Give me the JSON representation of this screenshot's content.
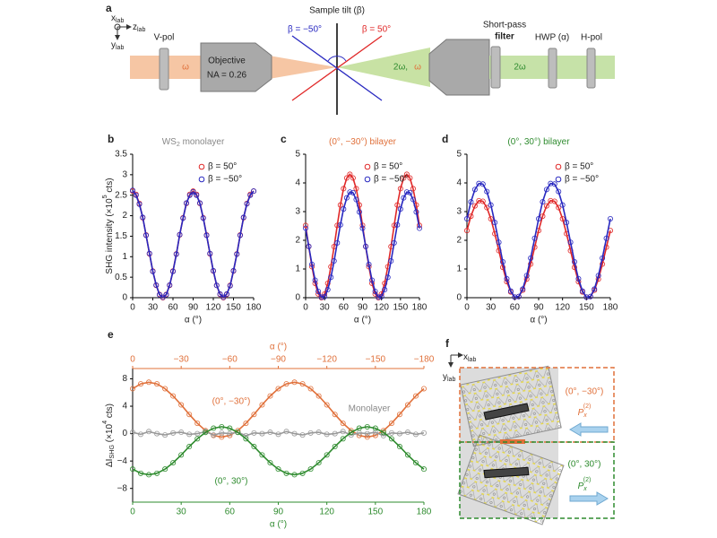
{
  "diagram_a": {
    "label": "a",
    "x_axis": {
      "text": "x",
      "sub": "lab"
    },
    "z_axis": {
      "text": "z",
      "sub": "lab"
    },
    "y_axis": {
      "text": "y",
      "sub": "lab"
    },
    "v_pol": "V-pol",
    "omega_in": "ω",
    "objective": "Objective",
    "na": "NA = 0.26",
    "sample_tilt": "Sample tilt (β)",
    "beta_neg": "β = −50°",
    "beta_pos": "β = 50°",
    "two_omega_mix": "2ω,",
    "omega_mix": "ω",
    "short_pass": "Short-pass",
    "filter": "filter",
    "hwp": "HWP (α)",
    "h_pol": "H-pol",
    "two_omega_out": "2ω"
  },
  "diagram_f": {
    "label": "f",
    "x_axis": {
      "text": "x",
      "sub": "lab"
    },
    "y_axis": {
      "text": "y",
      "sub": "lab"
    },
    "top_stack": "(0°, −30°)",
    "top_pol": {
      "text": "P",
      "sub": "x",
      "sup": "(2)"
    },
    "bottom_stack": "(0°, 30°)",
    "bottom_pol": {
      "text": "P",
      "sub": "x",
      "sup": "(2)"
    }
  },
  "chart_data": [
    {
      "type": "line",
      "panel": "b",
      "title": [
        {
          "text": "WS"
        },
        {
          "text": "2",
          "shift": "sub"
        },
        {
          "text": " monolayer"
        }
      ],
      "title_color": "#888888",
      "xlabel": "α (°)",
      "ylabel": [
        {
          "text": "SHG intensity (×10"
        },
        {
          "text": "5",
          "shift": "super"
        },
        {
          "text": " cts)"
        }
      ],
      "xlim": [
        0,
        180
      ],
      "xticks": [
        0,
        30,
        60,
        90,
        120,
        150,
        180
      ],
      "ylim": [
        0,
        3.5
      ],
      "yticks": [
        0,
        0.5,
        1,
        1.5,
        2,
        2.5,
        3,
        3.5
      ],
      "legend": "upper right",
      "x": [
        0,
        5,
        10,
        15,
        20,
        25,
        30,
        35,
        40,
        45,
        50,
        55,
        60,
        65,
        70,
        75,
        80,
        85,
        90,
        95,
        100,
        105,
        110,
        115,
        120,
        125,
        130,
        135,
        140,
        145,
        150,
        155,
        160,
        165,
        170,
        175,
        180
      ],
      "series": [
        {
          "name": "β = 50°",
          "color": "#e02828",
          "values": [
            2.6,
            2.52,
            2.3,
            1.95,
            1.53,
            1.07,
            0.65,
            0.3,
            0.08,
            0,
            0.08,
            0.3,
            0.65,
            1.07,
            1.53,
            1.95,
            2.3,
            2.52,
            2.6,
            2.52,
            2.3,
            1.95,
            1.53,
            1.07,
            0.65,
            0.3,
            0.08,
            0,
            0.08,
            0.3,
            0.65,
            1.07,
            1.53,
            1.95,
            2.3,
            2.52,
            2.6
          ]
        },
        {
          "name": "β = −50°",
          "color": "#2828c0",
          "values": [
            2.62,
            2.5,
            2.28,
            1.96,
            1.52,
            1.08,
            0.64,
            0.31,
            0.07,
            0.01,
            0.07,
            0.31,
            0.64,
            1.06,
            1.54,
            1.94,
            2.31,
            2.5,
            2.58,
            2.5,
            2.31,
            1.94,
            1.52,
            1.08,
            0.66,
            0.3,
            0.09,
            0.01,
            0.09,
            0.29,
            0.66,
            1.06,
            1.52,
            1.96,
            2.29,
            2.5,
            2.6
          ]
        }
      ]
    },
    {
      "type": "line",
      "panel": "c",
      "title": [
        {
          "text": "(0°, −30°) bilayer"
        }
      ],
      "title_color": "#e0703a",
      "xlabel": "α (°)",
      "xlim": [
        0,
        180
      ],
      "xticks": [
        0,
        30,
        60,
        90,
        120,
        150,
        180
      ],
      "ylim": [
        0,
        5
      ],
      "yticks": [
        0,
        1,
        2,
        3,
        4,
        5
      ],
      "legend": "upper right",
      "x": [
        0,
        5,
        10,
        15,
        20,
        25,
        30,
        35,
        40,
        45,
        50,
        55,
        60,
        65,
        70,
        75,
        80,
        85,
        90,
        95,
        100,
        105,
        110,
        115,
        120,
        125,
        130,
        135,
        140,
        145,
        150,
        155,
        160,
        165,
        170,
        175,
        180
      ],
      "series": [
        {
          "name": "β = 50°",
          "color": "#e02828",
          "values": [
            2.52,
            1.78,
            1.08,
            0.5,
            0.13,
            0,
            0.13,
            0.5,
            1.08,
            1.78,
            2.52,
            3.23,
            3.8,
            4.17,
            4.3,
            4.17,
            3.8,
            3.23,
            2.52,
            1.78,
            1.08,
            0.5,
            0.13,
            0,
            0.13,
            0.5,
            1.08,
            1.78,
            2.52,
            3.23,
            3.8,
            4.17,
            4.3,
            4.17,
            3.8,
            3.23,
            2.52
          ]
        },
        {
          "name": "β = −50°",
          "color": "#2828c0",
          "values": [
            2.42,
            1.79,
            1.16,
            0.61,
            0.22,
            0.02,
            0.04,
            0.28,
            0.71,
            1.28,
            1.91,
            2.54,
            3.09,
            3.48,
            3.68,
            3.66,
            3.42,
            2.99,
            2.42,
            1.79,
            1.16,
            0.61,
            0.22,
            0.02,
            0.04,
            0.28,
            0.71,
            1.28,
            1.91,
            2.54,
            3.09,
            3.48,
            3.68,
            3.66,
            3.42,
            2.99,
            2.42
          ]
        }
      ]
    },
    {
      "type": "line",
      "panel": "d",
      "title": [
        {
          "text": "(0°, 30°) bilayer"
        }
      ],
      "title_color": "#2e8b2e",
      "xlabel": "α (°)",
      "xlim": [
        0,
        180
      ],
      "xticks": [
        0,
        30,
        60,
        90,
        120,
        150,
        180
      ],
      "ylim": [
        0,
        5
      ],
      "yticks": [
        0,
        1,
        2,
        3,
        4,
        5
      ],
      "legend": "upper right",
      "x": [
        0,
        5,
        10,
        15,
        20,
        25,
        30,
        35,
        40,
        45,
        50,
        55,
        60,
        65,
        70,
        75,
        80,
        85,
        90,
        95,
        100,
        105,
        110,
        115,
        120,
        125,
        130,
        135,
        140,
        145,
        150,
        155,
        160,
        165,
        170,
        175,
        180
      ],
      "series": [
        {
          "name": "β = 50°",
          "color": "#e02828",
          "values": [
            2.34,
            2.84,
            3.2,
            3.38,
            3.36,
            3.14,
            2.75,
            2.23,
            1.64,
            1.06,
            0.56,
            0.2,
            0.02,
            0.04,
            0.26,
            0.65,
            1.17,
            1.76,
            2.34,
            2.84,
            3.2,
            3.38,
            3.36,
            3.14,
            2.75,
            2.23,
            1.64,
            1.06,
            0.56,
            0.2,
            0.02,
            0.04,
            0.26,
            0.65,
            1.17,
            1.76,
            2.34
          ]
        },
        {
          "name": "β = −50°",
          "color": "#2828c0",
          "values": [
            2.75,
            3.34,
            3.77,
            3.98,
            3.96,
            3.7,
            3.23,
            2.62,
            1.93,
            1.25,
            0.66,
            0.23,
            0.02,
            0.04,
            0.3,
            0.77,
            1.38,
            2.07,
            2.75,
            3.34,
            3.77,
            3.98,
            3.96,
            3.7,
            3.23,
            2.62,
            1.93,
            1.25,
            0.66,
            0.23,
            0.02,
            0.04,
            0.3,
            0.77,
            1.38,
            2.07,
            2.75
          ]
        }
      ]
    },
    {
      "type": "line",
      "panel": "e",
      "xlabel": "α (°)",
      "xaxis_color": "#2e8b2e",
      "x2label": "α (°)",
      "x2axis_color": "#e0703a",
      "ylabel": [
        {
          "text": "ΔI"
        },
        {
          "text": "SHG",
          "shift": "sub"
        },
        {
          "text": " (×10"
        },
        {
          "text": "4",
          "shift": "super"
        },
        {
          "text": " cts)"
        }
      ],
      "xlim": [
        0,
        180
      ],
      "xticks": [
        0,
        30,
        60,
        90,
        120,
        150,
        180
      ],
      "x2lim": [
        0,
        -180
      ],
      "x2ticks": [
        0,
        {
          "value": -30,
          "label": "−30"
        },
        {
          "value": -60,
          "label": "−60"
        },
        {
          "value": -90,
          "label": "−90"
        },
        {
          "value": -120,
          "label": "−120"
        },
        {
          "value": -150,
          "label": "−150"
        },
        {
          "value": -180,
          "label": "−180"
        }
      ],
      "ylim": [
        -10,
        9.5
      ],
      "yticks": [
        {
          "value": -8,
          "label": "−8"
        },
        {
          "value": -4,
          "label": "−4"
        },
        0,
        4,
        8
      ],
      "annotations": [
        {
          "text": "(0°, −30°)",
          "color": "#e0703a"
        },
        {
          "text": "Monolayer",
          "color": "#888888"
        },
        {
          "text": "(0°, 30°)",
          "color": "#2e8b2e"
        }
      ],
      "x": [
        0,
        5,
        10,
        15,
        20,
        25,
        30,
        35,
        40,
        45,
        50,
        55,
        60,
        65,
        70,
        75,
        80,
        85,
        90,
        95,
        100,
        105,
        110,
        115,
        120,
        125,
        130,
        135,
        140,
        145,
        150,
        155,
        160,
        165,
        170,
        175,
        180
      ],
      "series": [
        {
          "color": "#e0703a",
          "values": [
            6.56,
            7.26,
            7.5,
            7.26,
            6.56,
            5.5,
            4.2,
            2.8,
            1.5,
            0.44,
            -0.26,
            -0.5,
            -0.26,
            0.44,
            1.5,
            2.8,
            4.2,
            5.5,
            6.56,
            7.26,
            7.5,
            7.26,
            6.56,
            5.5,
            4.2,
            2.8,
            1.5,
            0.44,
            -0.26,
            -0.5,
            -0.26,
            0.44,
            1.5,
            2.8,
            4.2,
            5.5,
            6.56
          ]
        },
        {
          "color": "#999999",
          "values": [
            0.2,
            -0.1,
            0.3,
            0,
            -0.2,
            0.1,
            0.2,
            -0.1,
            0,
            0.3,
            -0.2,
            0.1,
            0,
            0.2,
            -0.3,
            0.1,
            0,
            0.2,
            -0.1,
            0.3,
            0,
            -0.2,
            0.1,
            0.2,
            -0.1,
            0,
            0.3,
            -0.2,
            0.1,
            0,
            0.2,
            -0.3,
            0.1,
            0,
            0.2,
            -0.1,
            0.1
          ]
        },
        {
          "color": "#2e8b2e",
          "values": [
            -5.18,
            -5.79,
            -6,
            -5.79,
            -5.18,
            -4.25,
            -3.11,
            -1.89,
            -0.75,
            0.18,
            0.79,
            1,
            0.79,
            0.18,
            -0.75,
            -1.89,
            -3.11,
            -4.25,
            -5.18,
            -5.79,
            -6,
            -5.79,
            -5.18,
            -4.25,
            -3.11,
            -1.89,
            -0.75,
            0.18,
            0.79,
            1,
            0.79,
            0.18,
            -0.75,
            -1.89,
            -3.11,
            -4.25,
            -5.18
          ]
        }
      ]
    }
  ]
}
